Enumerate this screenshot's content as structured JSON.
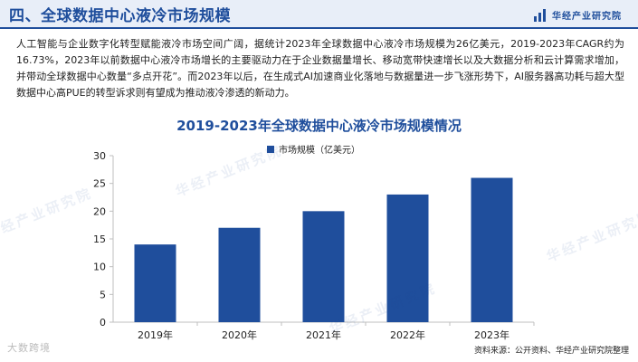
{
  "header": {
    "section_title": "四、全球数据中心液冷市场规模",
    "brand_name": "华经产业研究院",
    "brand_logo_icon": "bar-chart-logo-icon"
  },
  "intro_text": "人工智能与企业数字化转型赋能液冷市场空间广阔，据统计2023年全球数据中心液冷市场规模为26亿美元，2019-2023年CAGR约为16.73%，2023年以前数据中心液冷市场增长的主要驱动力在于企业数据量增长、移动宽带快速增长以及大数据分析和云计算需求增加，并带动全球数据中心数量“多点开花”。而2023年以后，在生成式AI加速商业化落地与数据量进一步飞涨形势下，AI服务器高功耗与超大型数据中心高PUE的转型诉求则有望成为推动液冷渗透的新动力。",
  "watermark_text": "华经产业研究院",
  "corner_stamp": "大数跨境",
  "source_text": "资料来源：公开资料、华经产业研究院整理",
  "colors": {
    "accent": "#1f4e9c",
    "bar": "#1f4e9c",
    "header_bg": "#e8eef8"
  },
  "chart_data": {
    "type": "bar",
    "title": "2019-2023年全球数据中心液冷市场规模情况",
    "categories": [
      "2019年",
      "2020年",
      "2021年",
      "2022年",
      "2023年"
    ],
    "series": [
      {
        "name": "市场规模（亿美元）",
        "values": [
          14,
          17,
          20,
          23,
          26
        ]
      }
    ],
    "xlabel": "",
    "ylabel": "",
    "ylim": [
      0,
      30
    ],
    "yticks": [
      0,
      5,
      10,
      15,
      20,
      25,
      30
    ],
    "grid": false,
    "legend_position": "top-center"
  }
}
